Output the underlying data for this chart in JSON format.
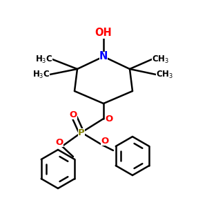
{
  "background_color": "#ffffff",
  "bond_color": "#000000",
  "bond_width": 1.8,
  "label_fontsize": 8.5,
  "atom_colors": {
    "N": "#0000ff",
    "O": "#ff0000",
    "P": "#808000",
    "C": "#000000"
  },
  "figsize": [
    3.0,
    3.0
  ],
  "dpi": 100
}
